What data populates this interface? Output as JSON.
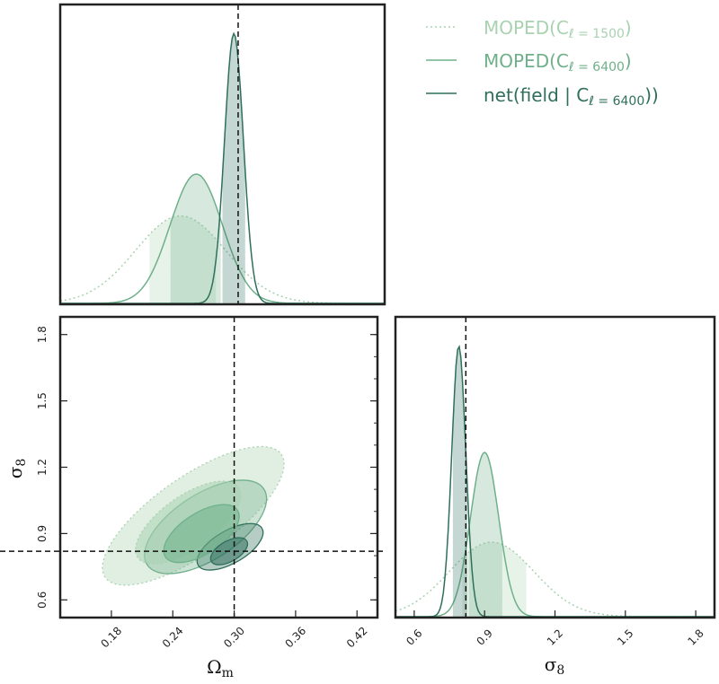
{
  "chart_data": {
    "type": "corner",
    "truth": {
      "omega_m": 0.3,
      "sigma_8": 0.82
    },
    "axes": {
      "omega_m": {
        "label": "Ω",
        "label_sub": "m",
        "range": [
          0.13,
          0.44
        ],
        "ticks": [
          0.18,
          0.24,
          0.3,
          0.36,
          0.42
        ],
        "tick_labels": [
          "0.18",
          "0.24",
          "0.30",
          "0.36",
          "0.42"
        ]
      },
      "sigma_8": {
        "label": "σ",
        "label_sub": "8",
        "range_2d": [
          0.52,
          1.88
        ],
        "range_1d": [
          0.52,
          1.88
        ],
        "ticks": [
          0.6,
          0.9,
          1.2,
          1.5,
          1.8
        ],
        "tick_labels": [
          "0.6",
          "0.9",
          "1.2",
          "1.5",
          "1.8"
        ]
      }
    },
    "series": [
      {
        "name": "MOPED(C",
        "name_sub": "ℓ = 1500",
        "name_tail": ")",
        "color": "#a9d2b0",
        "style": "dotted",
        "omega_m": {
          "mean": 0.245,
          "sd": 0.043,
          "ci68": [
            0.215,
            0.28
          ]
        },
        "sigma_8": {
          "mean": 0.93,
          "sd": 0.18,
          "ci68": [
            0.8,
            1.08
          ]
        },
        "contour68": {
          "center": [
            0.255,
            0.95
          ],
          "a": 0.06,
          "b": 0.026,
          "angle_deg": -35
        },
        "contour95": {
          "center": [
            0.26,
            0.98
          ],
          "a": 0.105,
          "b": 0.038,
          "angle_deg": -35
        }
      },
      {
        "name": "MOPED(C",
        "name_sub": "ℓ = 6400",
        "name_tail": ")",
        "color": "#6fb08a",
        "style": "solid",
        "omega_m": {
          "mean": 0.26,
          "sd": 0.025,
          "ci68": [
            0.234,
            0.285
          ]
        },
        "sigma_8": {
          "mean": 0.9,
          "sd": 0.06,
          "ci68": [
            0.83,
            0.98
          ]
        },
        "contour68": {
          "center": [
            0.268,
            0.9
          ],
          "a": 0.042,
          "b": 0.02,
          "angle_deg": -33
        },
        "contour95": {
          "center": [
            0.272,
            0.93
          ],
          "a": 0.068,
          "b": 0.032,
          "angle_deg": -33
        }
      },
      {
        "name": "net(field | C",
        "name_sub": "ℓ = 6400",
        "name_tail": "))",
        "color": "#2f6f5c",
        "style": "solid",
        "omega_m": {
          "mean": 0.296,
          "sd": 0.009,
          "ci68": [
            0.284,
            0.307
          ]
        },
        "sigma_8": {
          "mean": 0.79,
          "sd": 0.03,
          "ci68": [
            0.76,
            0.83
          ]
        },
        "contour68": {
          "center": [
            0.295,
            0.82
          ],
          "a": 0.02,
          "b": 0.01,
          "angle_deg": -30
        },
        "contour95": {
          "center": [
            0.296,
            0.84
          ],
          "a": 0.036,
          "b": 0.016,
          "angle_deg": -30
        }
      }
    ],
    "legend": {
      "placement": "top-right"
    },
    "grid": false
  }
}
